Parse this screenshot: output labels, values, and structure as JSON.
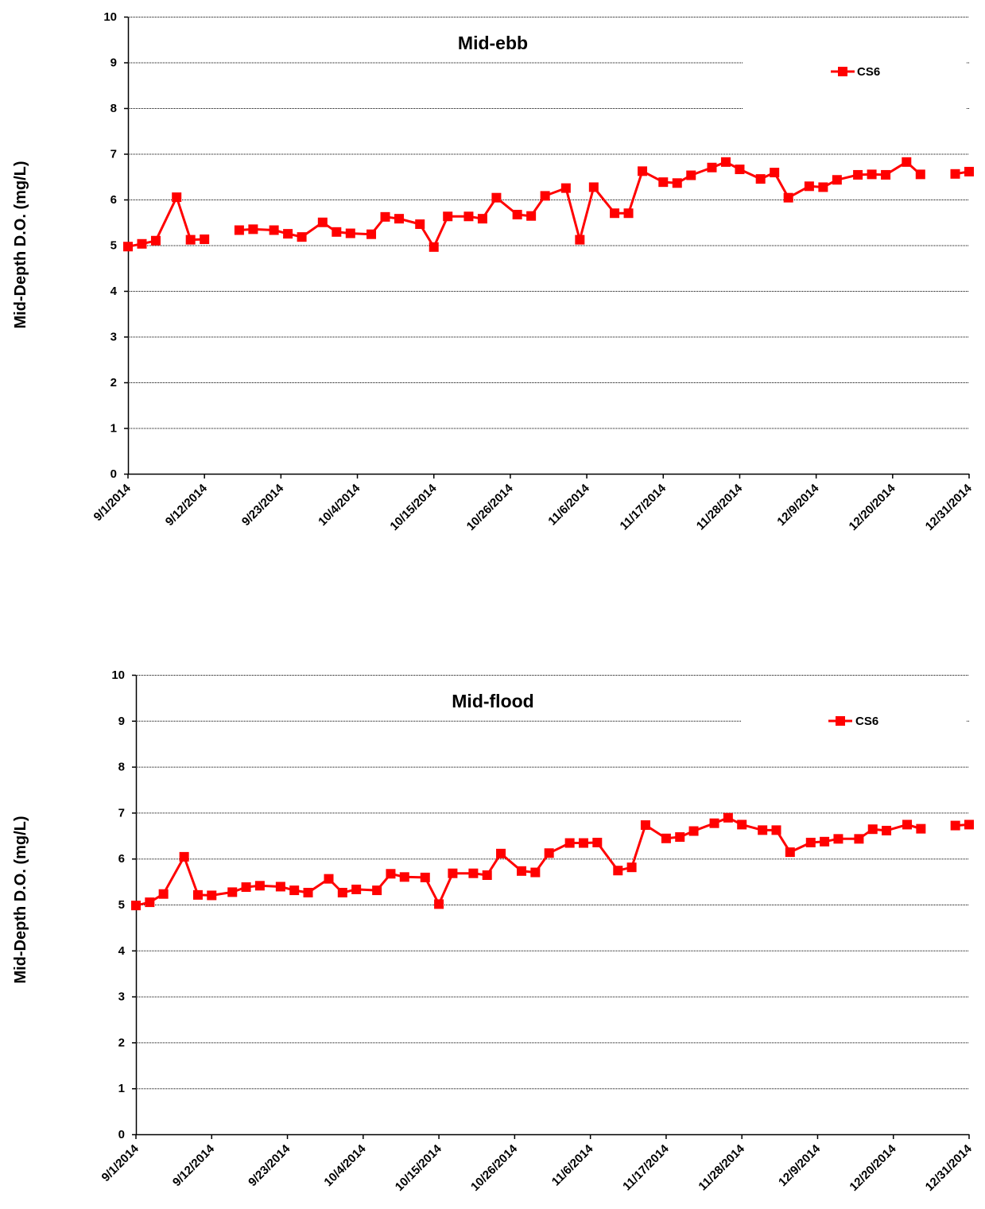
{
  "chart_data": [
    {
      "type": "line",
      "title": "Mid-ebb",
      "ylabel": "Mid-Depth D.O. (mg/L)",
      "xlabel": "",
      "x_range": [
        "2014-09-01",
        "2014-12-31"
      ],
      "xticks": [
        "9/1/2014",
        "9/12/2014",
        "9/23/2014",
        "10/4/2014",
        "10/15/2014",
        "10/26/2014",
        "11/6/2014",
        "11/17/2014",
        "11/28/2014",
        "12/9/2014",
        "12/20/2014",
        "12/31/2014"
      ],
      "ylim": [
        0,
        10
      ],
      "yticks": [
        "0",
        "1",
        "2",
        "3",
        "4",
        "5",
        "6",
        "7",
        "8",
        "9",
        "10"
      ],
      "grid": "horizontal dashed",
      "legend_position": "top-right",
      "series": [
        {
          "name": "CS6",
          "color": "#ff0000",
          "marker": "square",
          "points": [
            [
              "2014-09-01",
              4.97
            ],
            [
              "2014-09-03",
              5.03
            ],
            [
              "2014-09-05",
              5.1
            ],
            [
              "2014-09-08",
              6.05
            ],
            [
              "2014-09-10",
              5.12
            ],
            [
              "2014-09-12",
              5.13
            ],
            null,
            [
              "2014-09-17",
              5.33
            ],
            [
              "2014-09-19",
              5.35
            ],
            [
              "2014-09-22",
              5.33
            ],
            [
              "2014-09-24",
              5.25
            ],
            [
              "2014-09-26",
              5.18
            ],
            [
              "2014-09-29",
              5.5
            ],
            [
              "2014-10-01",
              5.29
            ],
            [
              "2014-10-03",
              5.26
            ],
            [
              "2014-10-06",
              5.24
            ],
            [
              "2014-10-08",
              5.62
            ],
            [
              "2014-10-10",
              5.58
            ],
            [
              "2014-10-13",
              5.46
            ],
            [
              "2014-10-15",
              4.96
            ],
            [
              "2014-10-17",
              5.63
            ],
            [
              "2014-10-20",
              5.63
            ],
            [
              "2014-10-22",
              5.58
            ],
            [
              "2014-10-24",
              6.04
            ],
            [
              "2014-10-27",
              5.67
            ],
            [
              "2014-10-29",
              5.64
            ],
            [
              "2014-10-31",
              6.08
            ],
            [
              "2014-11-03",
              6.25
            ],
            [
              "2014-11-05",
              5.12
            ],
            [
              "2014-11-07",
              6.27
            ],
            [
              "2014-11-10",
              5.7
            ],
            [
              "2014-11-12",
              5.7
            ],
            [
              "2014-11-14",
              6.62
            ],
            [
              "2014-11-17",
              6.38
            ],
            [
              "2014-11-19",
              6.36
            ],
            [
              "2014-11-21",
              6.53
            ],
            [
              "2014-11-24",
              6.7
            ],
            [
              "2014-11-26",
              6.82
            ],
            [
              "2014-11-28",
              6.66
            ],
            [
              "2014-12-01",
              6.45
            ],
            [
              "2014-12-03",
              6.59
            ],
            [
              "2014-12-05",
              6.04
            ],
            [
              "2014-12-08",
              6.29
            ],
            [
              "2014-12-10",
              6.27
            ],
            [
              "2014-12-12",
              6.43
            ],
            [
              "2014-12-15",
              6.54
            ],
            [
              "2014-12-17",
              6.55
            ],
            [
              "2014-12-19",
              6.54
            ],
            [
              "2014-12-22",
              6.82
            ],
            [
              "2014-12-24",
              6.55
            ],
            null,
            [
              "2014-12-29",
              6.56
            ],
            [
              "2014-12-31",
              6.61
            ]
          ]
        }
      ]
    },
    {
      "type": "line",
      "title": "Mid-flood",
      "ylabel": "Mid-Depth D.O. (mg/L)",
      "xlabel": "",
      "x_range": [
        "2014-09-01",
        "2014-12-31"
      ],
      "xticks": [
        "9/1/2014",
        "9/12/2014",
        "9/23/2014",
        "10/4/2014",
        "10/15/2014",
        "10/26/2014",
        "11/6/2014",
        "11/17/2014",
        "11/28/2014",
        "12/9/2014",
        "12/20/2014",
        "12/31/2014"
      ],
      "ylim": [
        0,
        10
      ],
      "yticks": [
        "0",
        "1",
        "2",
        "3",
        "4",
        "5",
        "6",
        "7",
        "8",
        "9",
        "10"
      ],
      "grid": "horizontal dashed",
      "legend_position": "top-right",
      "series": [
        {
          "name": "CS6",
          "color": "#ff0000",
          "marker": "square",
          "points": [
            [
              "2014-09-01",
              4.98
            ],
            [
              "2014-09-03",
              5.05
            ],
            [
              "2014-09-05",
              5.23
            ],
            [
              "2014-09-08",
              6.04
            ],
            [
              "2014-09-10",
              5.21
            ],
            [
              "2014-09-12",
              5.2
            ],
            [
              "2014-09-15",
              5.27
            ],
            [
              "2014-09-17",
              5.38
            ],
            [
              "2014-09-19",
              5.41
            ],
            [
              "2014-09-22",
              5.39
            ],
            [
              "2014-09-24",
              5.31
            ],
            [
              "2014-09-26",
              5.26
            ],
            [
              "2014-09-29",
              5.56
            ],
            [
              "2014-10-01",
              5.26
            ],
            [
              "2014-10-03",
              5.33
            ],
            [
              "2014-10-06",
              5.31
            ],
            [
              "2014-10-08",
              5.67
            ],
            [
              "2014-10-10",
              5.6
            ],
            [
              "2014-10-13",
              5.59
            ],
            [
              "2014-10-15",
              5.01
            ],
            [
              "2014-10-17",
              5.68
            ],
            [
              "2014-10-20",
              5.68
            ],
            [
              "2014-10-22",
              5.64
            ],
            [
              "2014-10-24",
              6.11
            ],
            [
              "2014-10-27",
              5.73
            ],
            [
              "2014-10-29",
              5.7
            ],
            [
              "2014-10-31",
              6.12
            ],
            [
              "2014-11-03",
              6.34
            ],
            [
              "2014-11-05",
              6.34
            ],
            [
              "2014-11-07",
              6.35
            ],
            [
              "2014-11-10",
              5.74
            ],
            [
              "2014-11-12",
              5.81
            ],
            [
              "2014-11-14",
              6.73
            ],
            [
              "2014-11-17",
              6.44
            ],
            [
              "2014-11-19",
              6.47
            ],
            [
              "2014-11-21",
              6.6
            ],
            [
              "2014-11-24",
              6.77
            ],
            [
              "2014-11-26",
              6.89
            ],
            [
              "2014-11-28",
              6.74
            ],
            [
              "2014-12-01",
              6.62
            ],
            [
              "2014-12-03",
              6.62
            ],
            [
              "2014-12-05",
              6.14
            ],
            [
              "2014-12-08",
              6.35
            ],
            [
              "2014-12-10",
              6.37
            ],
            [
              "2014-12-12",
              6.43
            ],
            [
              "2014-12-15",
              6.43
            ],
            [
              "2014-12-17",
              6.64
            ],
            [
              "2014-12-19",
              6.61
            ],
            [
              "2014-12-22",
              6.74
            ],
            [
              "2014-12-24",
              6.65
            ],
            null,
            [
              "2014-12-29",
              6.72
            ],
            [
              "2014-12-31",
              6.74
            ]
          ]
        }
      ]
    }
  ]
}
